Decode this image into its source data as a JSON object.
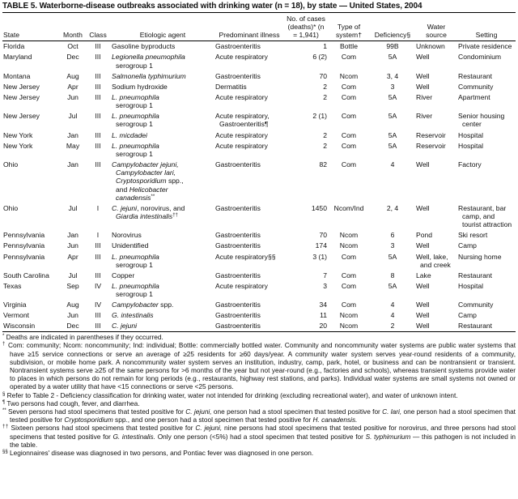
{
  "title": "TABLE 5. Waterborne-disease outbreaks associated with drinking water (n = 18), by state — United States, 2004",
  "headers": {
    "state": "State",
    "month": "Month",
    "class": "Class",
    "agent": "Etiologic agent",
    "illness": "Predominant illness",
    "cases": "No. of cases (deaths)* (n = 1,941)",
    "system": "Type of system†",
    "deficiency": "Deficiency§",
    "source": "Water source",
    "setting": "Setting"
  },
  "rows": [
    {
      "state": "Florida",
      "month": "Oct",
      "class": "III",
      "agent": [
        [
          {
            "t": "Gasoline byproducts"
          }
        ]
      ],
      "illness": [
        "Gastroenteritis"
      ],
      "cases": "1",
      "system": "Bottle",
      "deficiency": "99B",
      "source": [
        "Unknown"
      ],
      "setting": [
        "Private residence"
      ]
    },
    {
      "state": "Maryland",
      "month": "Dec",
      "class": "III",
      "agent": [
        [
          {
            "t": "Legionella pneumophila",
            "i": true
          }
        ],
        [
          {
            "t": "serogroup 1"
          }
        ]
      ],
      "illness": [
        "Acute respiratory"
      ],
      "cases": "6 (2)",
      "system": "Com",
      "deficiency": "5A",
      "source": [
        "Well"
      ],
      "setting": [
        "Condominium"
      ]
    },
    {
      "state": "Montana",
      "month": "Aug",
      "class": "III",
      "agent": [
        [
          {
            "t": "Salmonella typhimurium",
            "i": true
          }
        ]
      ],
      "illness": [
        "Gastroenteritis"
      ],
      "cases": "70",
      "system": "Ncom",
      "deficiency": "3, 4",
      "source": [
        "Well"
      ],
      "setting": [
        "Restaurant"
      ]
    },
    {
      "state": "New Jersey",
      "month": "Apr",
      "class": "III",
      "agent": [
        [
          {
            "t": "Sodium hydroxide"
          }
        ]
      ],
      "illness": [
        "Dermatitis"
      ],
      "cases": "2",
      "system": "Com",
      "deficiency": "3",
      "source": [
        "Well"
      ],
      "setting": [
        "Community"
      ]
    },
    {
      "state": "New Jersey",
      "month": "Jun",
      "class": "III",
      "agent": [
        [
          {
            "t": "L. pneumophila",
            "i": true
          }
        ],
        [
          {
            "t": "serogroup 1"
          }
        ]
      ],
      "illness": [
        "Acute respiratory"
      ],
      "cases": "2",
      "system": "Com",
      "deficiency": "5A",
      "source": [
        "River"
      ],
      "setting": [
        "Apartment"
      ]
    },
    {
      "state": "New Jersey",
      "month": "Jul",
      "class": "III",
      "agent": [
        [
          {
            "t": "L. pneumophila",
            "i": true
          }
        ],
        [
          {
            "t": "serogroup 1"
          }
        ]
      ],
      "illness": [
        "Acute respiratory,",
        "Gastroenteritis¶"
      ],
      "cases": "2 (1)",
      "system": "Com",
      "deficiency": "5A",
      "source": [
        "River"
      ],
      "setting": [
        "Senior housing",
        "center"
      ]
    },
    {
      "state": "New York",
      "month": "Jan",
      "class": "III",
      "agent": [
        [
          {
            "t": "L. micdadei",
            "i": true
          }
        ]
      ],
      "illness": [
        "Acute respiratory"
      ],
      "cases": "2",
      "system": "Com",
      "deficiency": "5A",
      "source": [
        "Reservoir"
      ],
      "setting": [
        "Hospital"
      ]
    },
    {
      "state": "New York",
      "month": "May",
      "class": "III",
      "agent": [
        [
          {
            "t": "L. pneumophila",
            "i": true
          }
        ],
        [
          {
            "t": "serogroup 1"
          }
        ]
      ],
      "illness": [
        "Acute respiratory"
      ],
      "cases": "2",
      "system": "Com",
      "deficiency": "5A",
      "source": [
        "Reservoir"
      ],
      "setting": [
        "Hospital"
      ]
    },
    {
      "state": "Ohio",
      "month": "Jan",
      "class": "III",
      "agent": [
        [
          {
            "t": "Campylobacter jejuni,",
            "i": true
          }
        ],
        [
          {
            "t": "Campylobacter lari,",
            "i": true
          }
        ],
        [
          {
            "t": "Cryptosporidium",
            "i": true
          },
          {
            "t": " spp.,"
          }
        ],
        [
          {
            "t": "and "
          },
          {
            "t": "Helicobacter",
            "i": true
          }
        ],
        [
          {
            "t": "canadensis",
            "i": true
          },
          {
            "t": "**",
            "s": true
          }
        ]
      ],
      "illness": [
        "Gastroenteritis"
      ],
      "cases": "82",
      "system": "Com",
      "deficiency": "4",
      "source": [
        "Well"
      ],
      "setting": [
        "Factory"
      ]
    },
    {
      "state": "Ohio",
      "month": "Jul",
      "class": "I",
      "agent": [
        [
          {
            "t": "C. jejuni",
            "i": true
          },
          {
            "t": ", norovirus, and"
          }
        ],
        [
          {
            "t": "Giardia intestinalis",
            "i": true
          },
          {
            "t": "††",
            "s": true
          }
        ]
      ],
      "illness": [
        "Gastroenteritis"
      ],
      "cases": "1450",
      "system": "Ncom/Ind",
      "deficiency": "2, 4",
      "source": [
        "Well"
      ],
      "setting": [
        "Restaurant, bar",
        "camp, and",
        "tourist attraction"
      ]
    },
    {
      "state": "Pennsylvania",
      "month": "Jan",
      "class": "I",
      "agent": [
        [
          {
            "t": "Norovirus"
          }
        ]
      ],
      "illness": [
        "Gastroenteritis"
      ],
      "cases": "70",
      "system": "Ncom",
      "deficiency": "6",
      "source": [
        "Pond"
      ],
      "setting": [
        "Ski resort"
      ]
    },
    {
      "state": "Pennsylvania",
      "month": "Jun",
      "class": "III",
      "agent": [
        [
          {
            "t": "Unidentified"
          }
        ]
      ],
      "illness": [
        "Gastroenteritis"
      ],
      "cases": "174",
      "system": "Ncom",
      "deficiency": "3",
      "source": [
        "Well"
      ],
      "setting": [
        "Camp"
      ]
    },
    {
      "state": "Pennsylvania",
      "month": "Apr",
      "class": "III",
      "agent": [
        [
          {
            "t": "L. pneumophila",
            "i": true
          }
        ],
        [
          {
            "t": "serogroup 1"
          }
        ]
      ],
      "illness": [
        "Acute respiratory§§"
      ],
      "cases": "3 (1)",
      "system": "Com",
      "deficiency": "5A",
      "source": [
        "Well, lake,",
        "and creek"
      ],
      "setting": [
        "Nursing home"
      ]
    },
    {
      "state": "South Carolina",
      "month": "Jul",
      "class": "III",
      "agent": [
        [
          {
            "t": "Copper"
          }
        ]
      ],
      "illness": [
        "Gastroenteritis"
      ],
      "cases": "7",
      "system": "Com",
      "deficiency": "8",
      "source": [
        "Lake"
      ],
      "setting": [
        "Restaurant"
      ]
    },
    {
      "state": "Texas",
      "month": "Sep",
      "class": "IV",
      "agent": [
        [
          {
            "t": "L. pneumophila",
            "i": true
          }
        ],
        [
          {
            "t": "serogroup 1"
          }
        ]
      ],
      "illness": [
        "Acute respiratory"
      ],
      "cases": "3",
      "system": "Com",
      "deficiency": "5A",
      "source": [
        "Well"
      ],
      "setting": [
        "Hospital"
      ]
    },
    {
      "state": "Virginia",
      "month": "Aug",
      "class": "IV",
      "agent": [
        [
          {
            "t": "Campylobacter",
            "i": true
          },
          {
            "t": " spp."
          }
        ]
      ],
      "illness": [
        "Gastroenteritis"
      ],
      "cases": "34",
      "system": "Com",
      "deficiency": "4",
      "source": [
        "Well"
      ],
      "setting": [
        "Community"
      ]
    },
    {
      "state": "Vermont",
      "month": "Jun",
      "class": "III",
      "agent": [
        [
          {
            "t": "G. intestinalis",
            "i": true
          }
        ]
      ],
      "illness": [
        "Gastroenteritis"
      ],
      "cases": "11",
      "system": "Ncom",
      "deficiency": "4",
      "source": [
        "Well"
      ],
      "setting": [
        "Camp"
      ]
    },
    {
      "state": "Wisconsin",
      "month": "Dec",
      "class": "III",
      "agent": [
        [
          {
            "t": "C. jejuni",
            "i": true
          }
        ]
      ],
      "illness": [
        "Gastroenteritis"
      ],
      "cases": "20",
      "system": "Ncom",
      "deficiency": "2",
      "source": [
        "Well"
      ],
      "setting": [
        "Restaurant"
      ]
    }
  ],
  "footnotes": [
    {
      "mark": "*",
      "parts": [
        {
          "t": "Deaths are indicated in parentheses if they occurred."
        }
      ]
    },
    {
      "mark": "†",
      "parts": [
        {
          "t": "Com: community; Ncom: noncommunity; Ind: individual; Bottle: commercially bottled water. Community and noncommunity water systems are public water systems that have ≥15 service connections or serve an average of ≥25 residents for ≥60 days/year. A community water system serves year-round residents of a community, subdivision, or mobile home park. A noncommunity water system serves an institution, industry, camp, park, hotel, or business and can be nontransient or transient. Nontransient systems serve ≥25 of the same persons for >6 months of the year but not year-round (e.g., factories and schools), whereas transient systems provide water to places in which persons do not remain for long periods (e.g., restaurants, highway rest stations, and parks). Individual water systems are small systems not owned or operated by a water utility that have <15 connections or serve <25 persons."
        }
      ]
    },
    {
      "mark": "§",
      "parts": [
        {
          "t": "Refer to Table 2 - Deficiency classification for drinking water, water not intended for drinking (excluding recreational water), and water of unknown intent."
        }
      ]
    },
    {
      "mark": "¶",
      "parts": [
        {
          "t": "Two persons had cough, fever, and diarrhea."
        }
      ]
    },
    {
      "mark": "**",
      "parts": [
        {
          "t": "Seven persons had stool specimens that tested positive for "
        },
        {
          "t": "C. jejuni,",
          "i": true
        },
        {
          "t": " one person had a stool specimen that tested positive for "
        },
        {
          "t": "C. lari,",
          "i": true
        },
        {
          "t": " one person had a stool specimen that tested positive for "
        },
        {
          "t": "Cryptosporidium",
          "i": true
        },
        {
          "t": " spp., and one person had a stool specimen that tested positive for "
        },
        {
          "t": "H. canadensis.",
          "i": true
        }
      ]
    },
    {
      "mark": "††",
      "parts": [
        {
          "t": "Sixteen persons had stool specimens that tested positive for "
        },
        {
          "t": "C. jejuni,",
          "i": true
        },
        {
          "t": " nine persons had stool specimens that tested positive for norovirus, and three persons had stool specimens that tested positive for "
        },
        {
          "t": "G. intestinalis.",
          "i": true
        },
        {
          "t": " Only one person (<5%) had a stool specimen that tested positive for "
        },
        {
          "t": "S. typhimurium",
          "i": true
        },
        {
          "t": " — this pathogen is not included in the table."
        }
      ]
    },
    {
      "mark": "§§",
      "parts": [
        {
          "t": "Legionnaires' disease was diagnosed in two persons, and Pontiac fever was diagnosed in one person."
        }
      ]
    }
  ]
}
